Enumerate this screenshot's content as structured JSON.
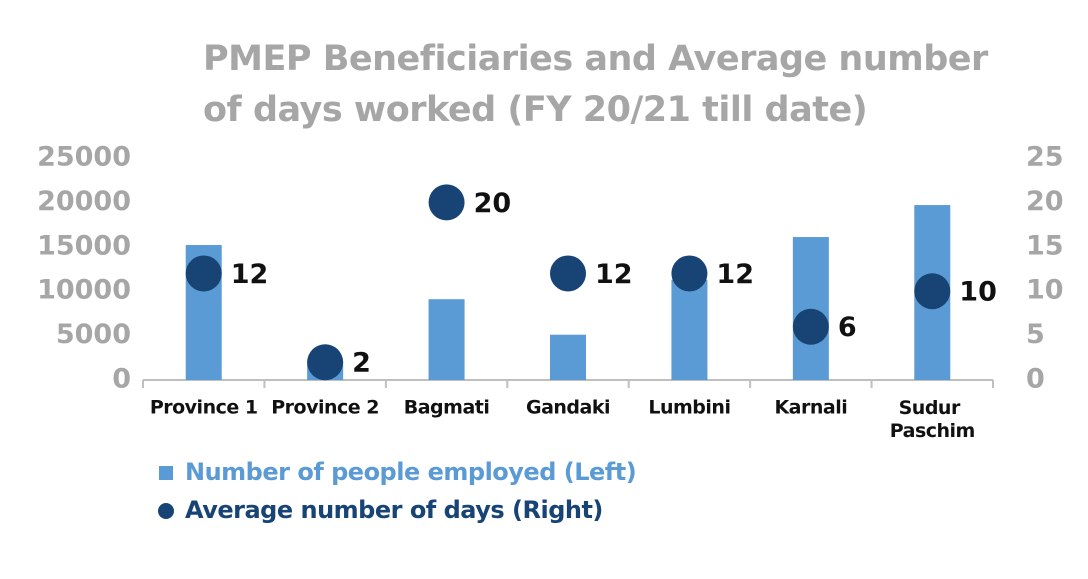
{
  "chart_data": {
    "type": "bar",
    "title": "PMEP Beneficiaries and Average number of days worked (FY 20/21 till date)",
    "categories": [
      "Province 1",
      "Province 2",
      "Bagmati",
      "Gandaki",
      "Lumbini",
      "Karnali",
      "Sudur Paschim"
    ],
    "series": [
      {
        "name": "Number of people employed (Left)",
        "color": "#5b9bd5",
        "type": "bar",
        "values": [
          15200,
          2100,
          9100,
          5100,
          11300,
          16100,
          19700
        ]
      },
      {
        "name": "Average number of days (Right)",
        "color": "#174475",
        "type": "scatter",
        "axis": "y2",
        "values": [
          12,
          2,
          20,
          12,
          12,
          6,
          10
        ]
      }
    ],
    "ylim": [
      0,
      25000
    ],
    "yticks": [
      0,
      5000,
      10000,
      15000,
      20000,
      25000
    ],
    "y2lim": [
      0,
      25
    ],
    "y2ticks": [
      0,
      5,
      10,
      15,
      20,
      25
    ],
    "grid": false
  }
}
